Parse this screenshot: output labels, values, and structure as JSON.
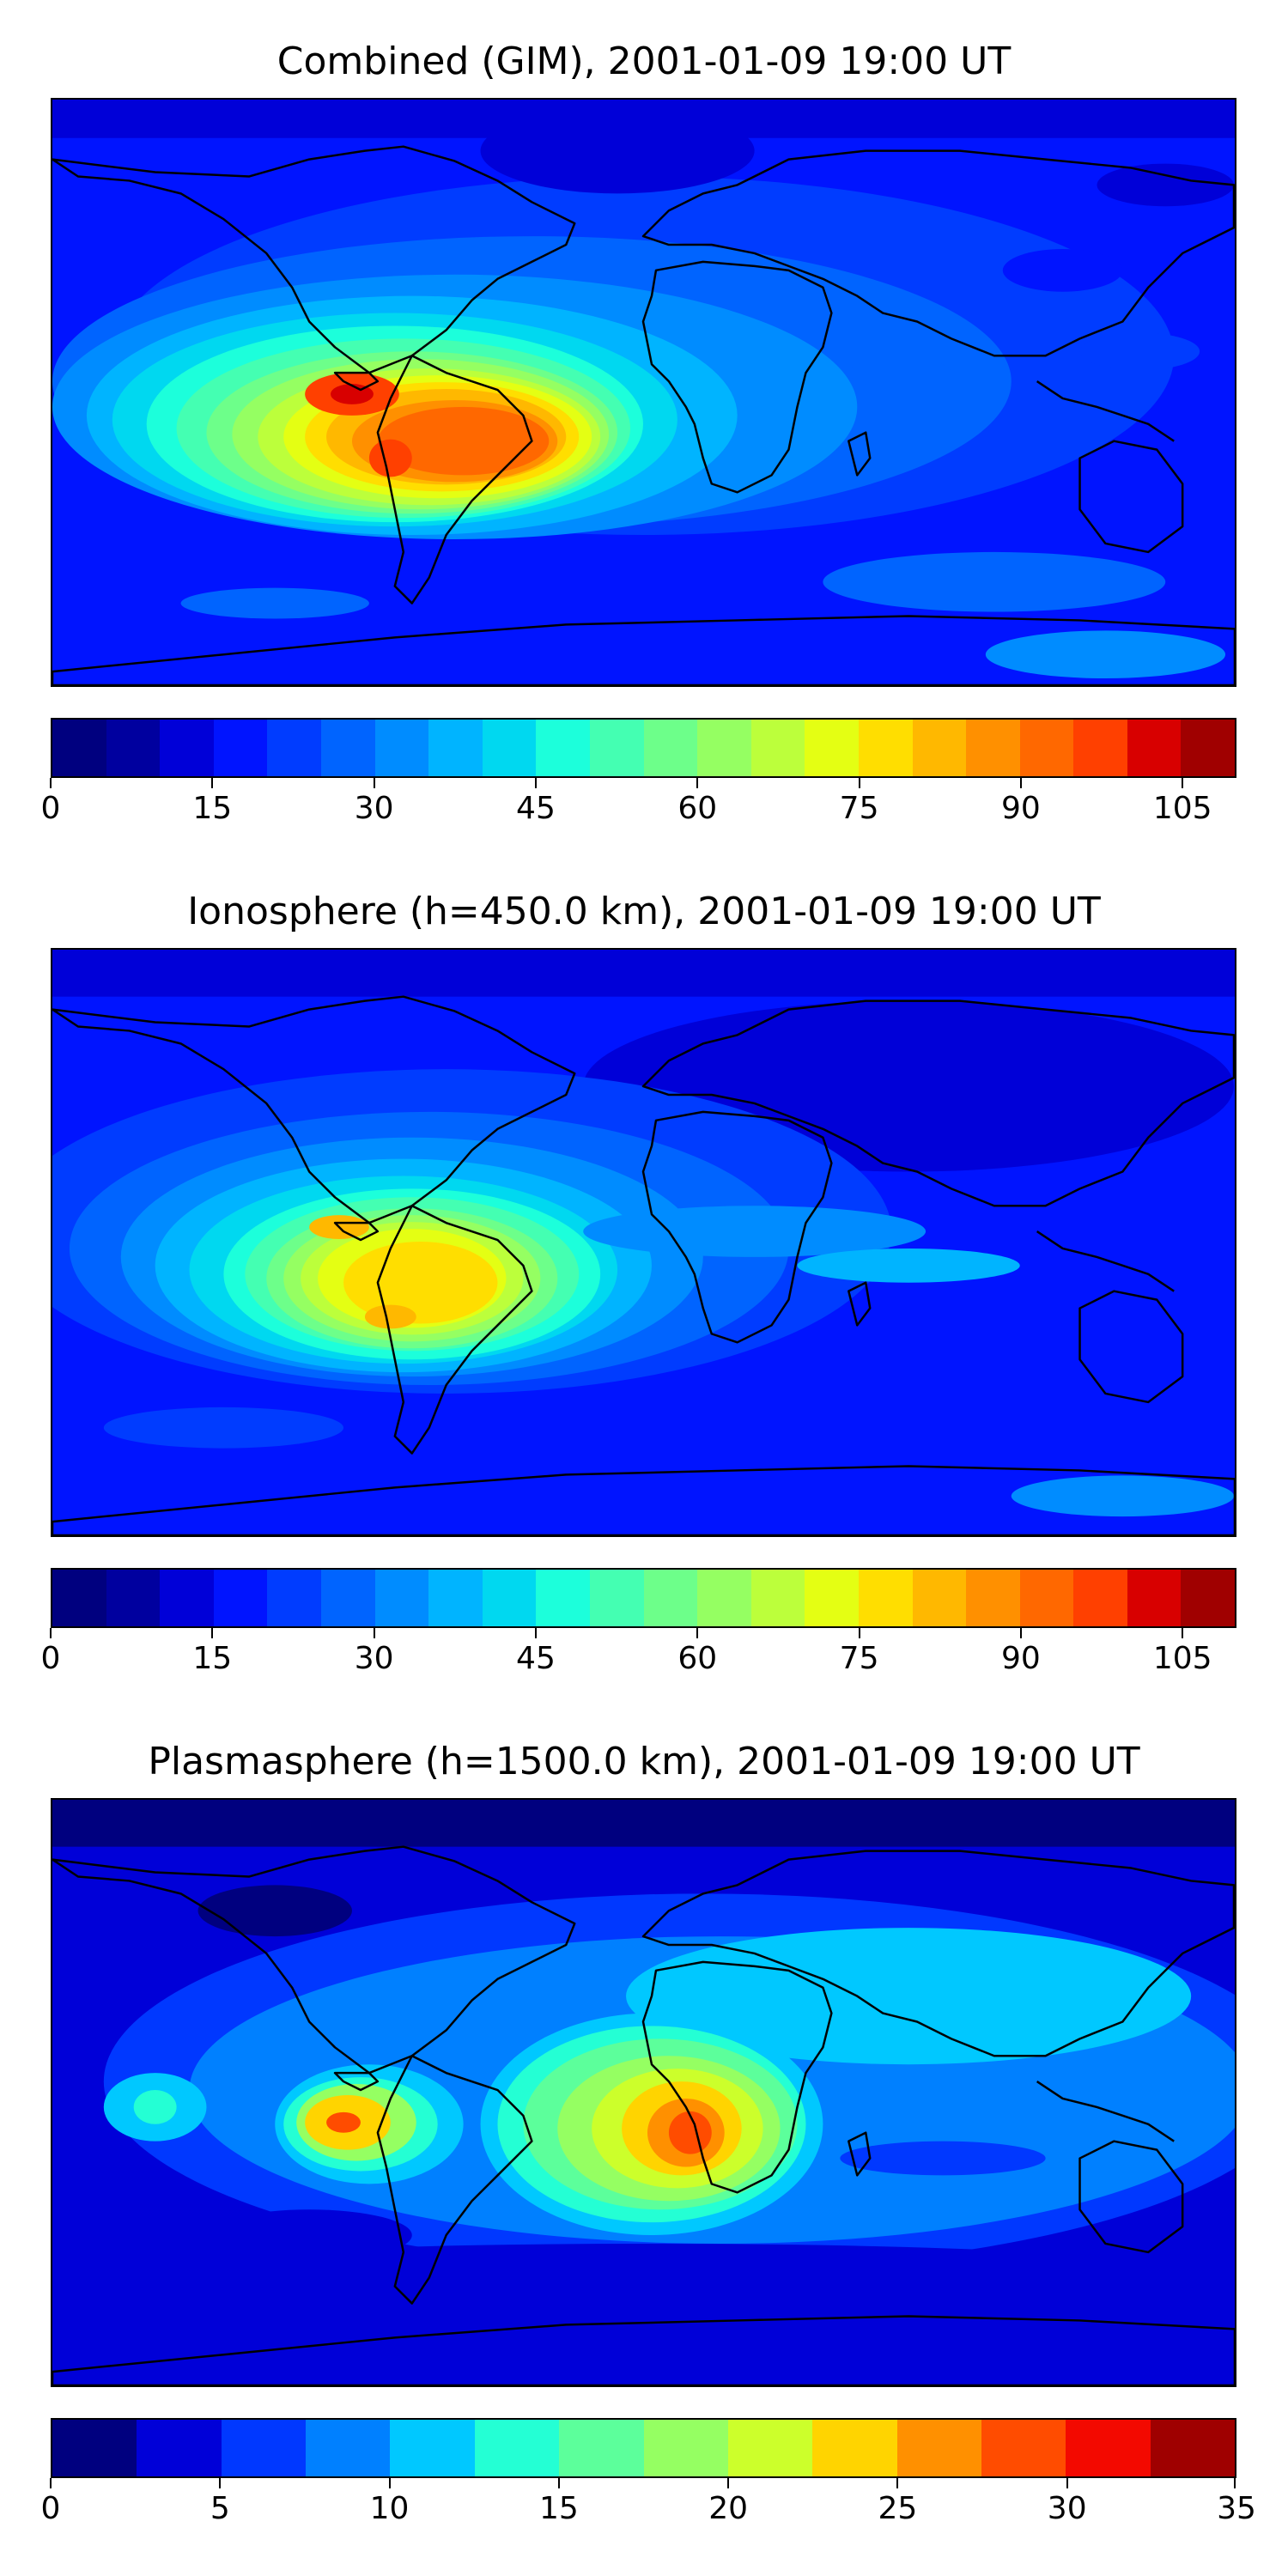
{
  "figure": {
    "panels": [
      {
        "id": "combined",
        "title": "Combined (GIM), 2001-01-09 19:00 UT",
        "colorbar": {
          "levels": 22,
          "vmin": 0,
          "vmax": 110,
          "tick_labels": [
            "0",
            "15",
            "30",
            "45",
            "60",
            "75",
            "90",
            "105"
          ],
          "tick_values": [
            0,
            15,
            30,
            45,
            60,
            75,
            90,
            105
          ]
        }
      },
      {
        "id": "ionosphere",
        "title": "Ionosphere  (h=450.0 km), 2001-01-09 19:00 UT",
        "colorbar": {
          "levels": 22,
          "vmin": 0,
          "vmax": 110,
          "tick_labels": [
            "0",
            "15",
            "30",
            "45",
            "60",
            "75",
            "90",
            "105"
          ],
          "tick_values": [
            0,
            15,
            30,
            45,
            60,
            75,
            90,
            105
          ]
        }
      },
      {
        "id": "plasmasphere",
        "title": "Plasmasphere (h=1500.0 km), 2001-01-09 19:00 UT",
        "colorbar": {
          "levels": 14,
          "vmin": 0,
          "vmax": 35,
          "tick_labels": [
            "0",
            "5",
            "10",
            "15",
            "20",
            "25",
            "30",
            "35"
          ],
          "tick_values": [
            0,
            5,
            10,
            15,
            20,
            25,
            30,
            35
          ]
        }
      }
    ],
    "colormap": "jet",
    "colors": {
      "jet_22": [
        "#00007f",
        "#00009f",
        "#0000d8",
        "#0014ff",
        "#003cff",
        "#0064ff",
        "#008cff",
        "#00b4ff",
        "#00d8f0",
        "#1cffdb",
        "#44ffb2",
        "#6dff8a",
        "#95ff62",
        "#bcff3b",
        "#e4ff13",
        "#ffde00",
        "#ffb800",
        "#ff9000",
        "#ff6800",
        "#ff4000",
        "#d80000",
        "#a00000"
      ],
      "jet_14": [
        "#00007f",
        "#0000d8",
        "#0038ff",
        "#0080ff",
        "#00c8ff",
        "#24ffd4",
        "#5cff9b",
        "#95ff62",
        "#ccff2b",
        "#ffd400",
        "#ff9000",
        "#ff4c00",
        "#f30900",
        "#9f0000"
      ],
      "coastline": "#000000"
    }
  }
}
